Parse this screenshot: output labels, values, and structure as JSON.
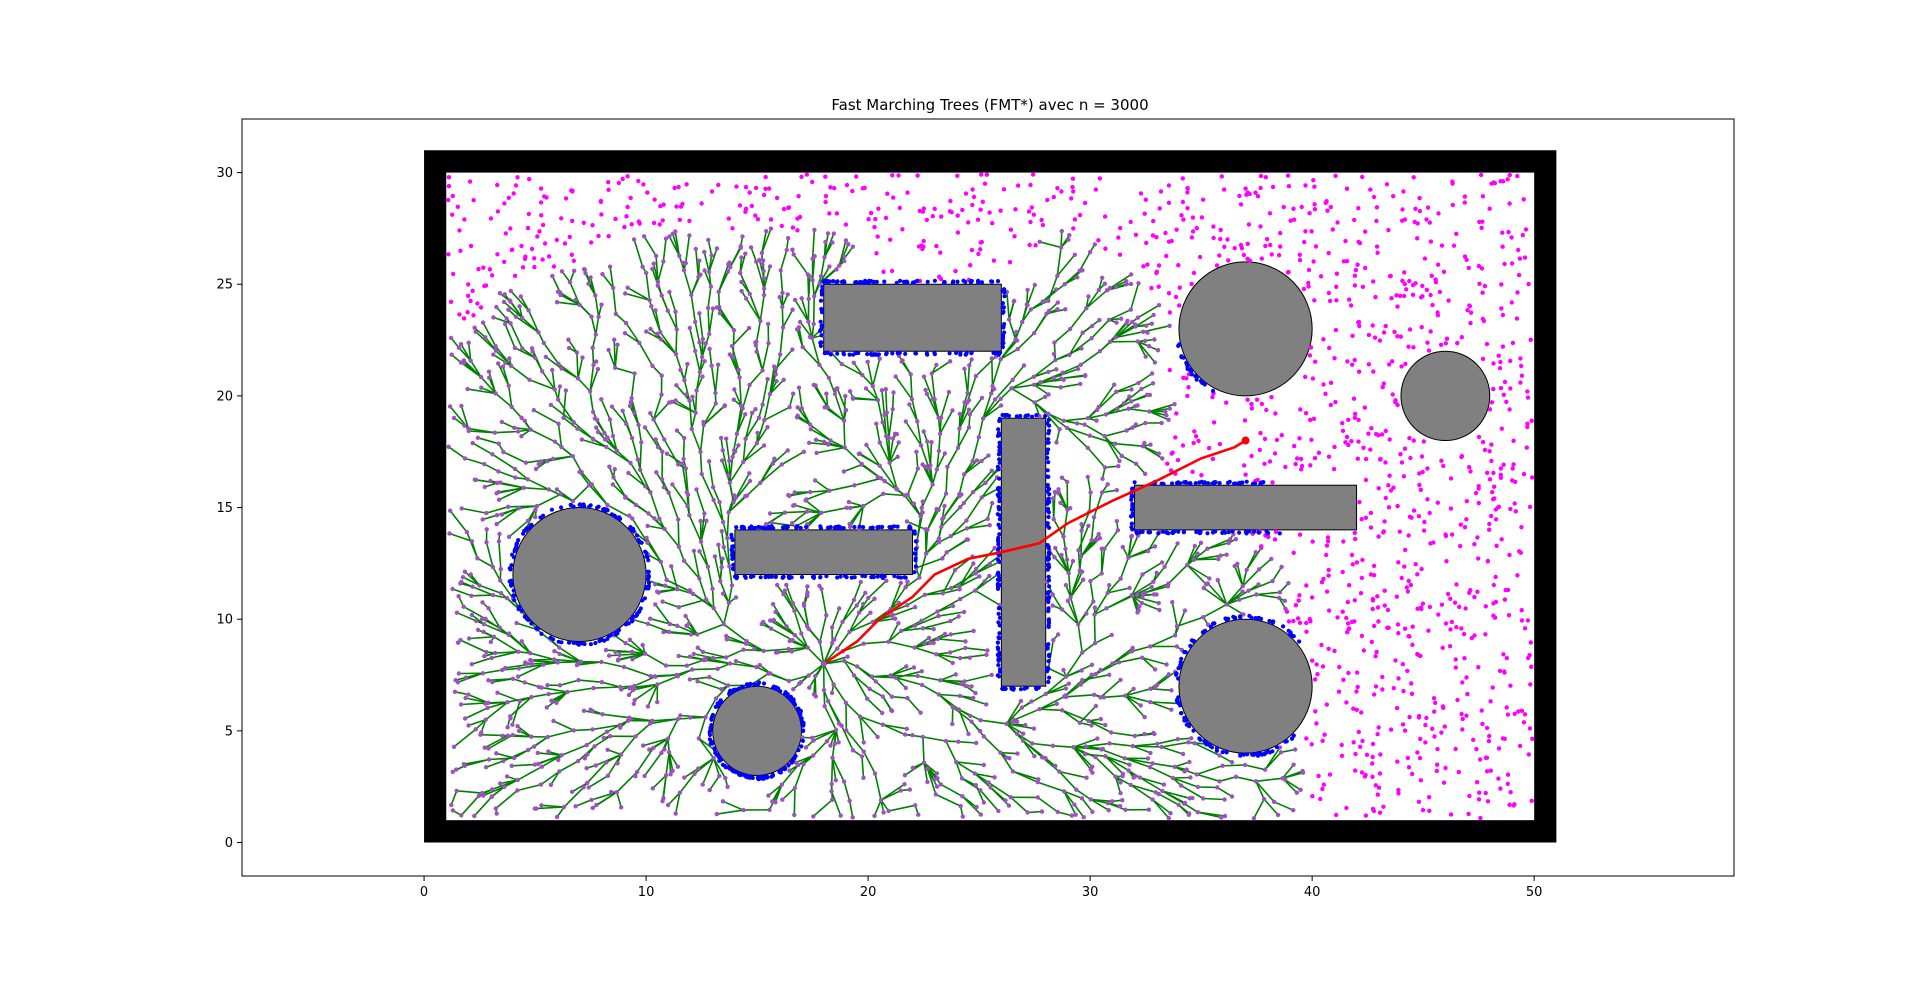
{
  "chart_data": {
    "type": "scatter",
    "title": "Fast Marching Trees (FMT*) avec n = 3000",
    "xlabel": "",
    "ylabel": "",
    "xlim": [
      -8.2,
      59.0
    ],
    "ylim": [
      -1.5,
      32.4
    ],
    "xticks": [
      0,
      10,
      20,
      30,
      40,
      50
    ],
    "yticks": [
      0,
      5,
      10,
      15,
      20,
      25,
      30
    ],
    "grid": false,
    "colors": {
      "border": "#000000",
      "obstacle": "#808080",
      "obstacle_edge": "#000000",
      "tree_edge": "#008000",
      "tree_node": "#a050c0",
      "boundary_sample": "#0000ff",
      "unvisited_sample": "#ff00ff",
      "path": "#ff0000"
    },
    "workspace": {
      "outer": [
        0,
        0,
        51,
        31
      ],
      "inner": [
        1,
        1,
        50,
        30
      ]
    },
    "obstacles": {
      "circles": [
        {
          "center": [
            7,
            12
          ],
          "r": 3
        },
        {
          "center": [
            15,
            5
          ],
          "r": 2
        },
        {
          "center": [
            37,
            23
          ],
          "r": 3
        },
        {
          "center": [
            46,
            20
          ],
          "r": 2
        },
        {
          "center": [
            37,
            7
          ],
          "r": 3
        }
      ],
      "rectangles": [
        {
          "x0": 18,
          "y0": 22,
          "x1": 26,
          "y1": 25
        },
        {
          "x0": 14,
          "y0": 12,
          "x1": 22,
          "y1": 14
        },
        {
          "x0": 26,
          "y0": 7,
          "x1": 28,
          "y1": 19
        },
        {
          "x0": 32,
          "y0": 14,
          "x1": 42,
          "y1": 16
        }
      ]
    },
    "start": [
      18,
      8
    ],
    "goal": [
      37,
      18
    ],
    "samples": {
      "n": 3000
    },
    "path": [
      [
        18,
        8
      ],
      [
        19.5,
        9
      ],
      [
        20.5,
        10
      ],
      [
        22,
        11
      ],
      [
        23,
        12
      ],
      [
        24.5,
        12.7
      ],
      [
        26,
        13
      ],
      [
        27.7,
        13.4
      ],
      [
        29,
        14.3
      ],
      [
        31,
        15.3
      ],
      [
        33,
        16.2
      ],
      [
        35,
        17.2
      ],
      [
        36.5,
        17.7
      ],
      [
        37,
        18
      ]
    ]
  }
}
